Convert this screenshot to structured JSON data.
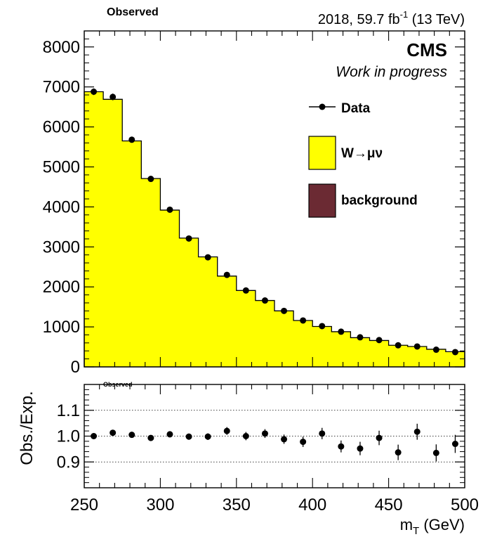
{
  "header": {
    "observed_top": "Observed",
    "lumi_prefix": "2018, 59.7 fb",
    "lumi_exp": "-1",
    "lumi_suffix": " (13 TeV)",
    "experiment": "CMS",
    "status": "Work in progress"
  },
  "legend": {
    "data": "Data",
    "signal": "W→μν",
    "background": "background"
  },
  "ratio": {
    "observed_label": "Observed",
    "ylabel": "Obs./Exp."
  },
  "xaxis": {
    "label_main": "m",
    "label_sub": "T",
    "label_unit": " (GeV)"
  },
  "colors": {
    "signal_fill": "#ffff00",
    "background_fill": "#6b2a33",
    "data_marker": "#000000"
  },
  "chart_data": [
    {
      "type": "bar",
      "histogram": true,
      "x_edges": [
        250,
        262.5,
        275,
        287.5,
        300,
        312.5,
        325,
        337.5,
        350,
        362.5,
        375,
        387.5,
        400,
        412.5,
        425,
        437.5,
        450,
        462.5,
        475,
        487.5,
        500
      ],
      "xlim": [
        250,
        500
      ],
      "ylim": [
        0,
        8400
      ],
      "yticks": [
        0,
        1000,
        2000,
        3000,
        4000,
        5000,
        6000,
        7000,
        8000
      ],
      "series": [
        {
          "name": "W→μν",
          "values": [
            6880,
            6690,
            5650,
            4710,
            3920,
            3220,
            2750,
            2270,
            1910,
            1660,
            1400,
            1160,
            1010,
            880,
            730,
            660,
            540,
            510,
            440,
            380
          ]
        },
        {
          "name": "background",
          "values": [
            0,
            0,
            0,
            0,
            0,
            0,
            0,
            0,
            0,
            0,
            0,
            0,
            0,
            0,
            0,
            0,
            0,
            0,
            0,
            0
          ]
        },
        {
          "name": "Data",
          "x": [
            256.25,
            268.75,
            281.25,
            293.75,
            306.25,
            318.75,
            331.25,
            343.75,
            356.25,
            368.75,
            381.25,
            393.75,
            406.25,
            418.75,
            431.25,
            443.75,
            456.25,
            468.75,
            481.25,
            493.75
          ],
          "values": [
            6880,
            6750,
            5680,
            4700,
            3930,
            3210,
            2740,
            2300,
            1910,
            1660,
            1400,
            1160,
            1020,
            880,
            740,
            670,
            540,
            510,
            430,
            370
          ]
        }
      ]
    },
    {
      "type": "scatter",
      "x": [
        256.25,
        268.75,
        281.25,
        293.75,
        306.25,
        318.75,
        331.25,
        343.75,
        356.25,
        368.75,
        381.25,
        393.75,
        406.25,
        418.75,
        431.25,
        443.75,
        456.25,
        468.75,
        481.25,
        493.75
      ],
      "y": [
        1.0,
        1.013,
        1.005,
        0.993,
        1.007,
        0.998,
        0.998,
        1.02,
        1.0,
        1.01,
        0.988,
        0.978,
        1.01,
        0.96,
        0.952,
        0.993,
        0.937,
        1.017,
        0.935,
        0.97
      ],
      "yerr": [
        0.008,
        0.009,
        0.01,
        0.011,
        0.012,
        0.012,
        0.013,
        0.015,
        0.016,
        0.017,
        0.018,
        0.02,
        0.022,
        0.023,
        0.026,
        0.028,
        0.03,
        0.031,
        0.033,
        0.035
      ],
      "xlim": [
        250,
        500
      ],
      "ylim": [
        0.8,
        1.2
      ],
      "yticks": [
        0.9,
        1.0,
        1.1
      ],
      "ytick_labels": [
        "0.9",
        "1.0",
        "1.1"
      ],
      "xticks": [
        250,
        300,
        350,
        400,
        450,
        500
      ],
      "gridlines": [
        0.9,
        1.0,
        1.1
      ]
    }
  ]
}
